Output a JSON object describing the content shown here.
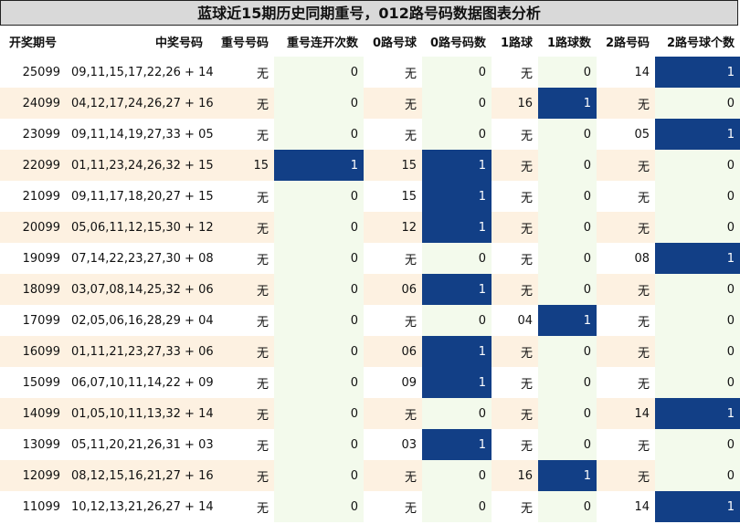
{
  "title": "蓝球近15期历史同期重号，012路号码数据图表分析",
  "headers": [
    "开奖期号",
    "中奖号码",
    "重号号码",
    "重号连开次数",
    "0路号球",
    "0路号码数",
    "1路球",
    "1路球数",
    "2路号码",
    "2路号球个数"
  ],
  "rows": [
    [
      "25099",
      "09,11,15,17,22,26 + 14",
      "无",
      "0",
      "无",
      "0",
      "无",
      "0",
      "14",
      "1"
    ],
    [
      "24099",
      "04,12,17,24,26,27 + 16",
      "无",
      "0",
      "无",
      "0",
      "16",
      "1",
      "无",
      "0"
    ],
    [
      "23099",
      "09,11,14,19,27,33 + 05",
      "无",
      "0",
      "无",
      "0",
      "无",
      "0",
      "05",
      "1"
    ],
    [
      "22099",
      "01,11,23,24,26,32 + 15",
      "15",
      "1",
      "15",
      "1",
      "无",
      "0",
      "无",
      "0"
    ],
    [
      "21099",
      "09,11,17,18,20,27 + 15",
      "无",
      "0",
      "15",
      "1",
      "无",
      "0",
      "无",
      "0"
    ],
    [
      "20099",
      "05,06,11,12,15,30 + 12",
      "无",
      "0",
      "12",
      "1",
      "无",
      "0",
      "无",
      "0"
    ],
    [
      "19099",
      "07,14,22,23,27,30 + 08",
      "无",
      "0",
      "无",
      "0",
      "无",
      "0",
      "08",
      "1"
    ],
    [
      "18099",
      "03,07,08,14,25,32 + 06",
      "无",
      "0",
      "06",
      "1",
      "无",
      "0",
      "无",
      "0"
    ],
    [
      "17099",
      "02,05,06,16,28,29 + 04",
      "无",
      "0",
      "无",
      "0",
      "04",
      "1",
      "无",
      "0"
    ],
    [
      "16099",
      "01,11,21,23,27,33 + 06",
      "无",
      "0",
      "06",
      "1",
      "无",
      "0",
      "无",
      "0"
    ],
    [
      "15099",
      "06,07,10,11,14,22 + 09",
      "无",
      "0",
      "09",
      "1",
      "无",
      "0",
      "无",
      "0"
    ],
    [
      "14099",
      "01,05,10,11,13,32 + 14",
      "无",
      "0",
      "无",
      "0",
      "无",
      "0",
      "14",
      "1"
    ],
    [
      "13099",
      "05,11,20,21,26,31 + 03",
      "无",
      "0",
      "03",
      "1",
      "无",
      "0",
      "无",
      "0"
    ],
    [
      "12099",
      "08,12,15,16,21,27 + 16",
      "无",
      "0",
      "无",
      "0",
      "16",
      "1",
      "无",
      "0"
    ],
    [
      "11099",
      "10,12,13,21,26,27 + 14",
      "无",
      "0",
      "无",
      "0",
      "无",
      "0",
      "14",
      "1"
    ]
  ],
  "colors": {
    "highlight": "#123f86",
    "stripe": "#fdf1e1",
    "count_bg": "#f3faec",
    "title_bg": "#d9d9d9"
  }
}
